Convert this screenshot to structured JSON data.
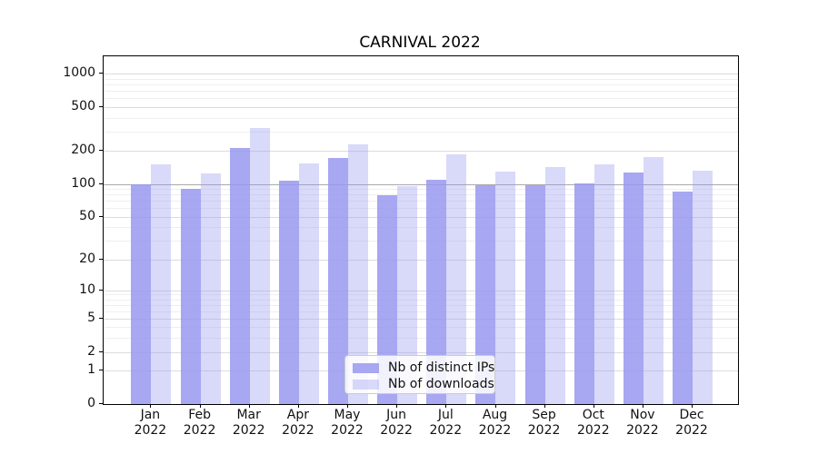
{
  "chart_data": {
    "type": "bar",
    "title": "CARNIVAL 2022",
    "year": "2022",
    "categories": [
      "Jan",
      "Feb",
      "Mar",
      "Apr",
      "May",
      "Jun",
      "Jul",
      "Aug",
      "Sep",
      "Oct",
      "Nov",
      "Dec"
    ],
    "series": [
      {
        "name": "Nb of distinct IPs",
        "color": "rgba(152,152,240,0.85)",
        "values": [
          100,
          90,
          210,
          108,
          172,
          79,
          110,
          97,
          98,
          101,
          127,
          85
        ]
      },
      {
        "name": "Nb of downloads",
        "color": "rgba(152,152,240,0.37)",
        "values": [
          150,
          125,
          320,
          155,
          228,
          96,
          185,
          130,
          142,
          150,
          176,
          133
        ]
      }
    ],
    "yscale": "log-with-zero",
    "yticks": [
      0,
      1,
      2,
      5,
      10,
      20,
      50,
      100,
      200,
      500,
      1000
    ],
    "ytick_labels": [
      "0",
      "1",
      "2",
      "5",
      "10",
      "20",
      "50",
      "100",
      "200",
      "500",
      "1000"
    ],
    "emphasized_gridline_value": 100,
    "grid": true,
    "legend_position": "lower-center",
    "xlabel": "",
    "ylabel": ""
  }
}
